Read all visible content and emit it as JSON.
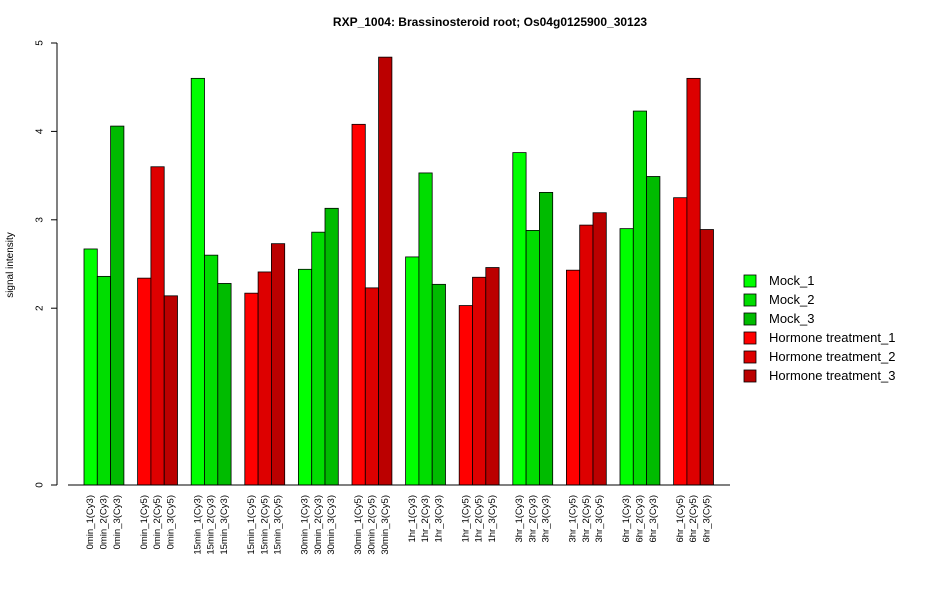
{
  "chart_data": {
    "type": "bar",
    "title": "RXP_1004: Brassinosteroid root; Os04g0125900_30123",
    "xlabel": "",
    "ylabel": "signal intensity",
    "ylim": [
      0,
      5
    ],
    "yticks": [
      0,
      2,
      3,
      4,
      5
    ],
    "grid": false,
    "legend_position": "right",
    "colors": {
      "Mock_1": "#00FF00",
      "Mock_2": "#00DD00",
      "Mock_3": "#00BB00",
      "Hormone treatment_1": "#FF0000",
      "Hormone treatment_2": "#DD0000",
      "Hormone treatment_3": "#BB0000"
    },
    "legend": [
      "Mock_1",
      "Mock_2",
      "Mock_3",
      "Hormone treatment_1",
      "Hormone treatment_2",
      "Hormone treatment_3"
    ],
    "groups": [
      {
        "series": [
          "Mock_1",
          "Mock_2",
          "Mock_3"
        ],
        "labels": [
          "0min_1(Cy3)",
          "0min_2(Cy3)",
          "0min_3(Cy3)"
        ],
        "values": [
          2.67,
          2.36,
          4.06
        ]
      },
      {
        "series": [
          "Hormone treatment_1",
          "Hormone treatment_2",
          "Hormone treatment_3"
        ],
        "labels": [
          "0min_1(Cy5)",
          "0min_2(Cy5)",
          "0min_3(Cy5)"
        ],
        "values": [
          2.34,
          3.6,
          2.14
        ]
      },
      {
        "series": [
          "Mock_1",
          "Mock_2",
          "Mock_3"
        ],
        "labels": [
          "15min_1(Cy3)",
          "15min_2(Cy3)",
          "15min_3(Cy3)"
        ],
        "values": [
          4.6,
          2.6,
          2.28
        ]
      },
      {
        "series": [
          "Hormone treatment_1",
          "Hormone treatment_2",
          "Hormone treatment_3"
        ],
        "labels": [
          "15min_1(Cy5)",
          "15min_2(Cy5)",
          "15min_3(Cy5)"
        ],
        "values": [
          2.17,
          2.41,
          2.73
        ]
      },
      {
        "series": [
          "Mock_1",
          "Mock_2",
          "Mock_3"
        ],
        "labels": [
          "30min_1(Cy3)",
          "30min_2(Cy3)",
          "30min_3(Cy3)"
        ],
        "values": [
          2.44,
          2.86,
          3.13
        ]
      },
      {
        "series": [
          "Hormone treatment_1",
          "Hormone treatment_2",
          "Hormone treatment_3"
        ],
        "labels": [
          "30min_1(Cy5)",
          "30min_2(Cy5)",
          "30min_3(Cy5)"
        ],
        "values": [
          4.08,
          2.23,
          4.84
        ]
      },
      {
        "series": [
          "Mock_1",
          "Mock_2",
          "Mock_3"
        ],
        "labels": [
          "1hr_1(Cy3)",
          "1hr_2(Cy3)",
          "1hr_3(Cy3)"
        ],
        "values": [
          2.58,
          3.53,
          2.27
        ]
      },
      {
        "series": [
          "Hormone treatment_1",
          "Hormone treatment_2",
          "Hormone treatment_3"
        ],
        "labels": [
          "1hr_1(Cy5)",
          "1hr_2(Cy5)",
          "1hr_3(Cy5)"
        ],
        "values": [
          2.03,
          2.35,
          2.46
        ]
      },
      {
        "series": [
          "Mock_1",
          "Mock_2",
          "Mock_3"
        ],
        "labels": [
          "3hr_1(Cy3)",
          "3hr_2(Cy3)",
          "3hr_3(Cy3)"
        ],
        "values": [
          3.76,
          2.88,
          3.31
        ]
      },
      {
        "series": [
          "Hormone treatment_1",
          "Hormone treatment_2",
          "Hormone treatment_3"
        ],
        "labels": [
          "3hr_1(Cy5)",
          "3hr_2(Cy5)",
          "3hr_3(Cy5)"
        ],
        "values": [
          2.43,
          2.94,
          3.08
        ]
      },
      {
        "series": [
          "Mock_1",
          "Mock_2",
          "Mock_3"
        ],
        "labels": [
          "6hr_1(Cy3)",
          "6hr_2(Cy3)",
          "6hr_3(Cy3)"
        ],
        "values": [
          2.9,
          4.23,
          3.49
        ]
      },
      {
        "series": [
          "Hormone treatment_1",
          "Hormone treatment_2",
          "Hormone treatment_3"
        ],
        "labels": [
          "6hr_1(Cy5)",
          "6hr_2(Cy5)",
          "6hr_3(Cy5)"
        ],
        "values": [
          3.25,
          4.6,
          2.89
        ]
      }
    ]
  }
}
